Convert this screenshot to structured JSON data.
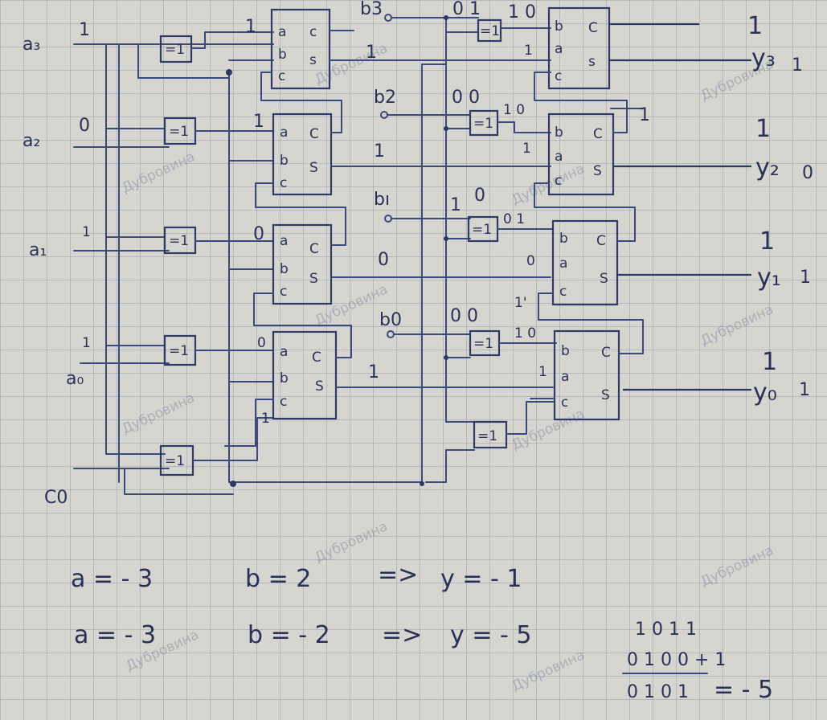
{
  "inputs": {
    "a3": "a₃",
    "a2": "a₂",
    "a1": "a₁",
    "a0": "a₀",
    "b3": "b3",
    "b2": "b2",
    "b1": "bı",
    "b0": "b0",
    "c0": "C0"
  },
  "outputs": {
    "y3": "y₃",
    "y2": "y₂",
    "y1": "y₁",
    "y0": "y₀"
  },
  "pins": {
    "a": "a",
    "b": "b",
    "c": "c",
    "s": "s",
    "C": "C",
    "S": "S",
    "xor": "=1"
  },
  "values": {
    "a3": "1",
    "a2": "0",
    "a1": "1",
    "a0": "1",
    "b3": "0 1",
    "b2": "0 0",
    "b1": "1",
    "b1_carry": "0",
    "b0": "0 0",
    "left_a_in": [
      "1",
      "1",
      "0",
      "0"
    ],
    "left_b_in": [
      "1",
      "1",
      "0",
      "1"
    ],
    "left_c_in": "1",
    "right_top_in": "1 0",
    "right_b2": "1 0",
    "right_b1": "0 1",
    "right_b0": "1 0",
    "right_a_in": [
      "1",
      "1",
      "0",
      "1"
    ],
    "right_c1": "1'",
    "carry_top": "1",
    "y3": "1",
    "y3_val": "1",
    "y2": "1",
    "y2_val": "0",
    "y1": "1",
    "y1_val": "1",
    "y0": "1",
    "y0_val": "1"
  },
  "equations": {
    "line1_a": "a = - 3",
    "line1_b": "b = 2",
    "line1_arrow": "=>",
    "line1_y": "y = - 1",
    "line2_a": "a = - 3",
    "line2_b": "b = - 2",
    "line2_arrow": "=>",
    "line2_y": "y = - 5",
    "calc_row1": "1 0 1 1",
    "calc_row2": "0 1 0 0 + 1",
    "calc_result": "0 1 0 1",
    "calc_eq": "= - 5"
  },
  "watermark": "Дубровина"
}
